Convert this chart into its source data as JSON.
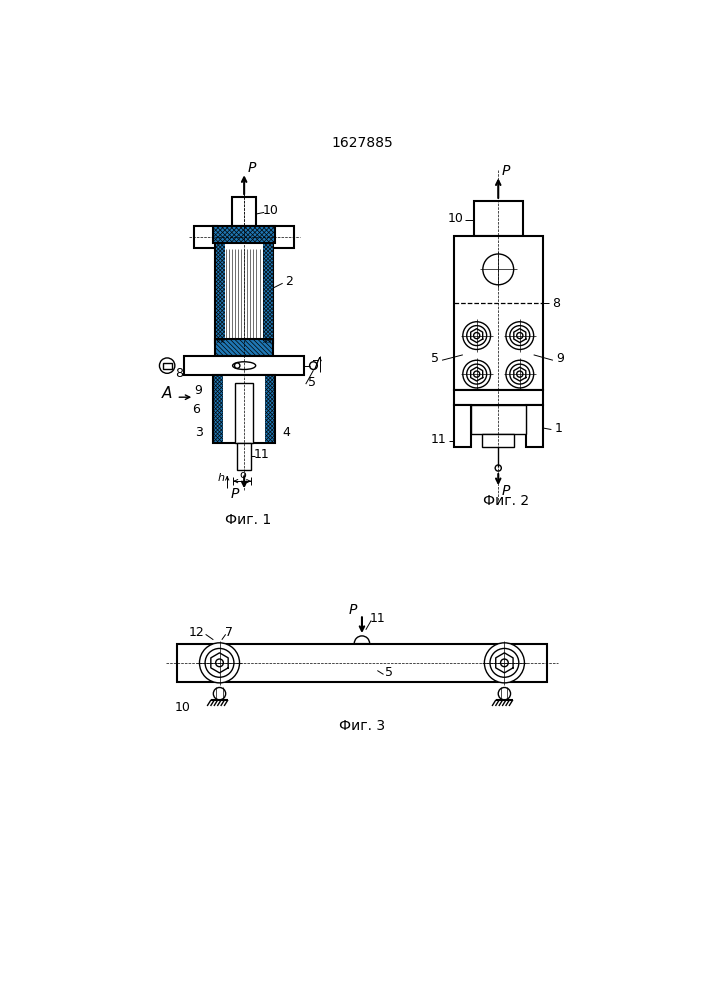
{
  "title": "1627885",
  "bg_color": "#ffffff",
  "fig1_caption": "Фиг. 1",
  "fig2_caption": "Фиг. 2",
  "fig3_caption": "Фиг. 3",
  "lw": 1.0,
  "lw2": 1.5
}
